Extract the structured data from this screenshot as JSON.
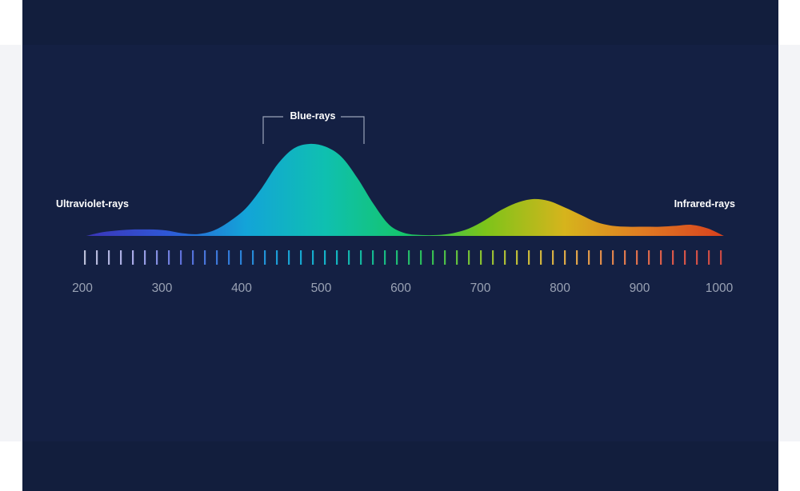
{
  "chart_data": {
    "type": "area",
    "title": "",
    "xlabel": "",
    "ylabel": "",
    "xlim": [
      200,
      1000
    ],
    "ylim": [
      0,
      1
    ],
    "x_ticks": [
      200,
      300,
      400,
      500,
      600,
      700,
      800,
      900,
      1000
    ],
    "tick_labels": [
      "200",
      "300",
      "400",
      "500",
      "600",
      "700",
      "800",
      "900",
      "1000"
    ],
    "series": [
      {
        "x": [
          200,
          220,
          240,
          260,
          280,
          300,
          320,
          340,
          360,
          380,
          400,
          420,
          440,
          460,
          480,
          500,
          520,
          540,
          560,
          580,
          600,
          620,
          640,
          660,
          680,
          700,
          720,
          740,
          760,
          780,
          800,
          820,
          840,
          860,
          880,
          900,
          920,
          940,
          960,
          980,
          1000
        ],
        "y": [
          0.0,
          0.04,
          0.06,
          0.07,
          0.07,
          0.06,
          0.03,
          0.02,
          0.06,
          0.16,
          0.3,
          0.52,
          0.78,
          0.95,
          1.0,
          0.97,
          0.86,
          0.63,
          0.35,
          0.12,
          0.03,
          0.01,
          0.01,
          0.03,
          0.08,
          0.17,
          0.28,
          0.36,
          0.4,
          0.38,
          0.31,
          0.23,
          0.15,
          0.11,
          0.1,
          0.1,
          0.1,
          0.11,
          0.12,
          0.08,
          0.0
        ]
      }
    ],
    "annotations": {
      "ultraviolet": "Ultraviolet-rays",
      "blue": "Blue-rays",
      "infrared": "Infrared-rays"
    },
    "grid": false,
    "legend": "none"
  },
  "colors": {
    "background": "#142043",
    "outer_background": "#121e3d",
    "page_background": "#ffffff",
    "side_band": "#f3f4f7",
    "bracket": "#9aa3b8",
    "tick_label": "#9aa2b4",
    "gradient_stops": [
      "#3b35b8",
      "#2f57d6",
      "#13a4d8",
      "#0fc0b0",
      "#15c56a",
      "#7cc41a",
      "#d6b41c",
      "#e07a22",
      "#d8401e"
    ]
  }
}
